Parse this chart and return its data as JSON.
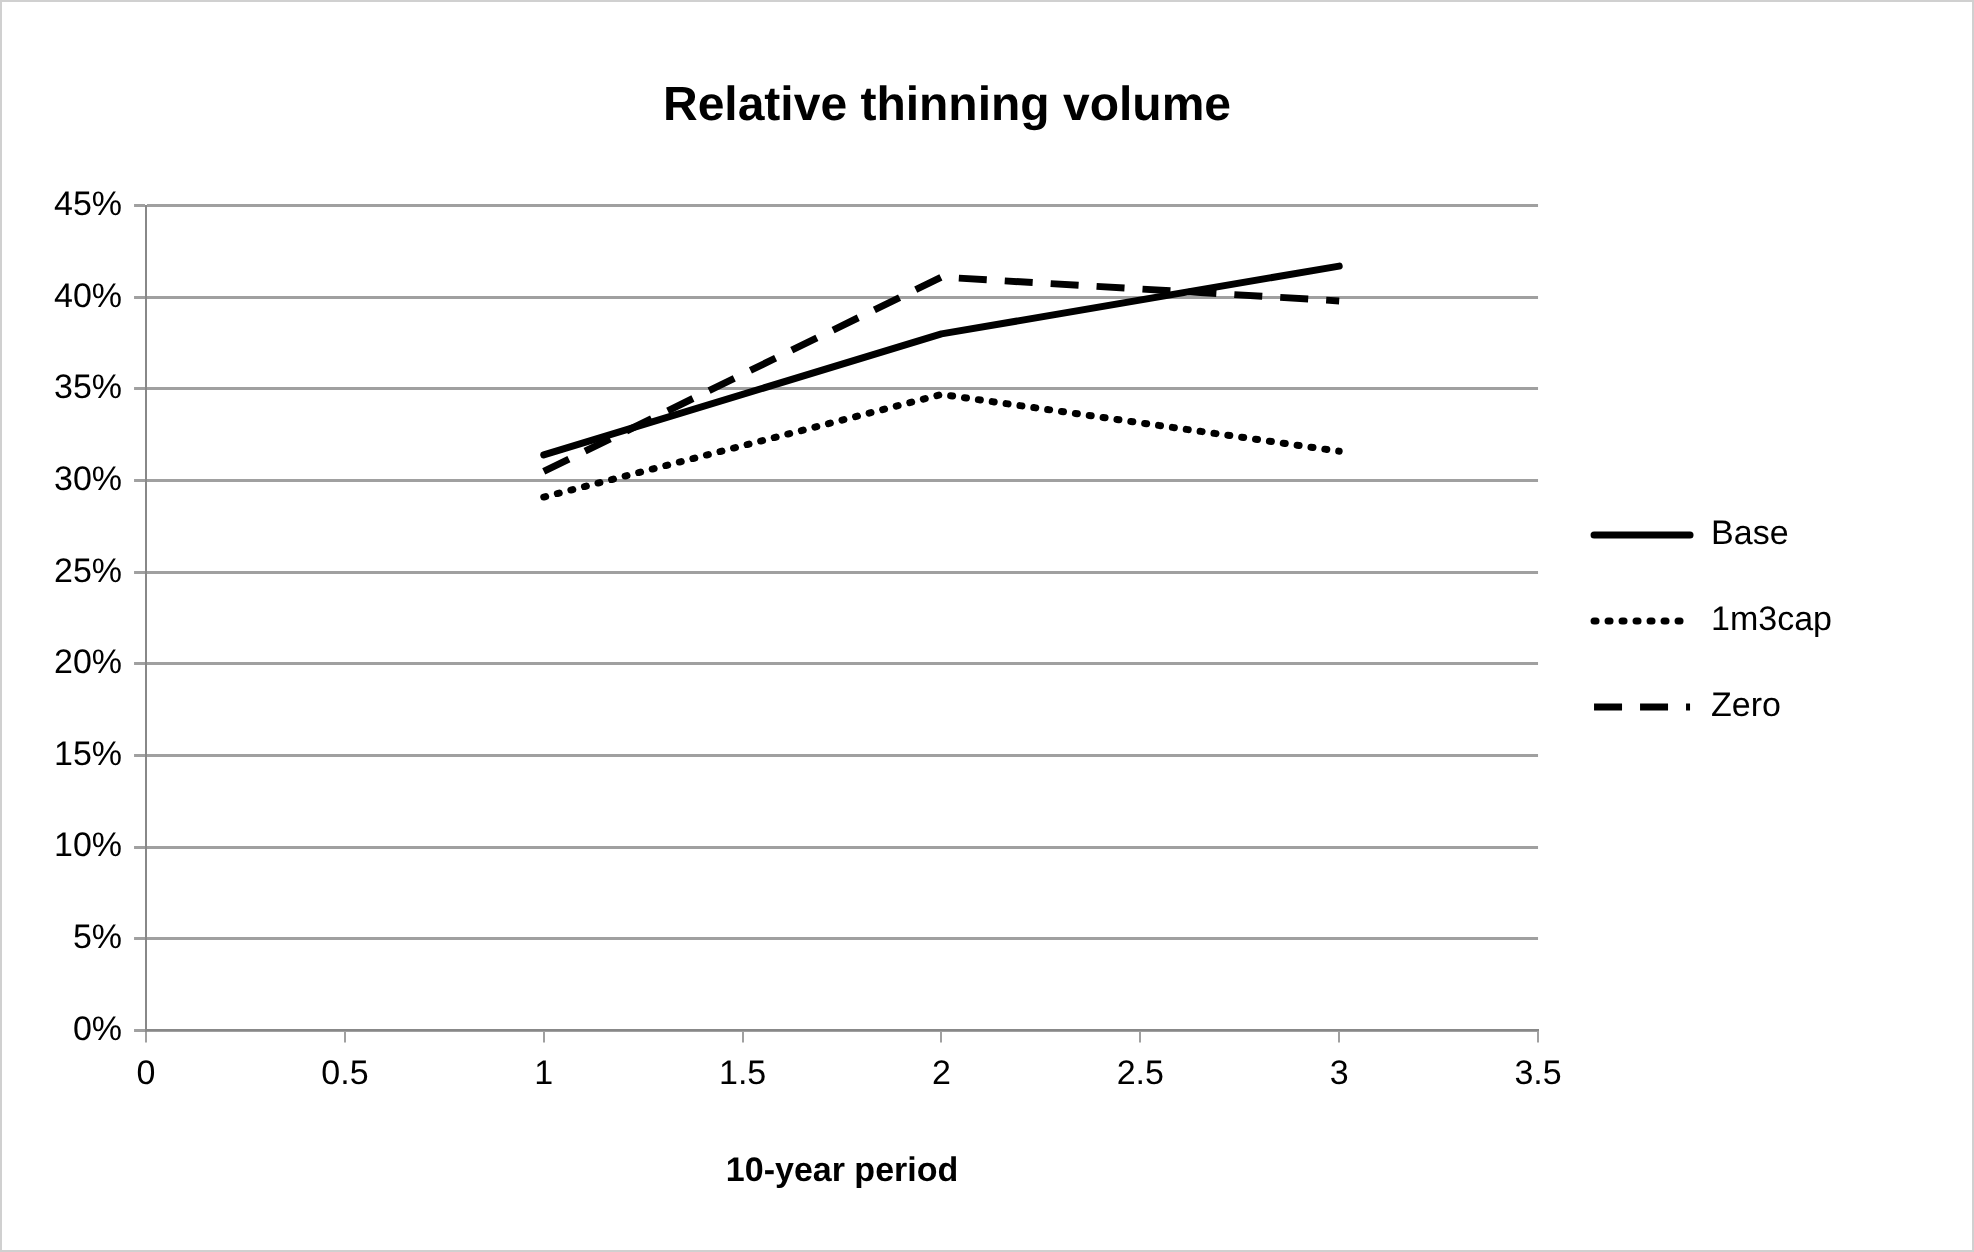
{
  "chart_data": {
    "type": "line",
    "title": "Relative thinning volume",
    "xlabel": "10-year period",
    "xlim": [
      0,
      3.5
    ],
    "xticks": [
      0,
      0.5,
      1,
      1.5,
      2,
      2.5,
      3,
      3.5
    ],
    "ylim": [
      0,
      45
    ],
    "yticks": [
      {
        "value": 0,
        "label": "0%"
      },
      {
        "value": 5,
        "label": "5%"
      },
      {
        "value": 10,
        "label": "10%"
      },
      {
        "value": 15,
        "label": "15%"
      },
      {
        "value": 20,
        "label": "20%"
      },
      {
        "value": 25,
        "label": "25%"
      },
      {
        "value": 30,
        "label": "30%"
      },
      {
        "value": 35,
        "label": "35%"
      },
      {
        "value": 40,
        "label": "40%"
      },
      {
        "value": 45,
        "label": "45%"
      }
    ],
    "x": [
      1,
      2,
      3
    ],
    "series": [
      {
        "name": "Base",
        "color": "#000000",
        "line_style": "solid",
        "values": [
          31.4,
          38.0,
          41.7
        ]
      },
      {
        "name": "1m3cap",
        "color": "#000000",
        "line_style": "dotted",
        "values": [
          29.1,
          34.7,
          31.6
        ]
      },
      {
        "name": "Zero",
        "color": "#000000",
        "line_style": "dashed",
        "values": [
          30.5,
          41.1,
          39.8
        ]
      }
    ],
    "grid": "y",
    "legend": "right",
    "marker": "none"
  }
}
